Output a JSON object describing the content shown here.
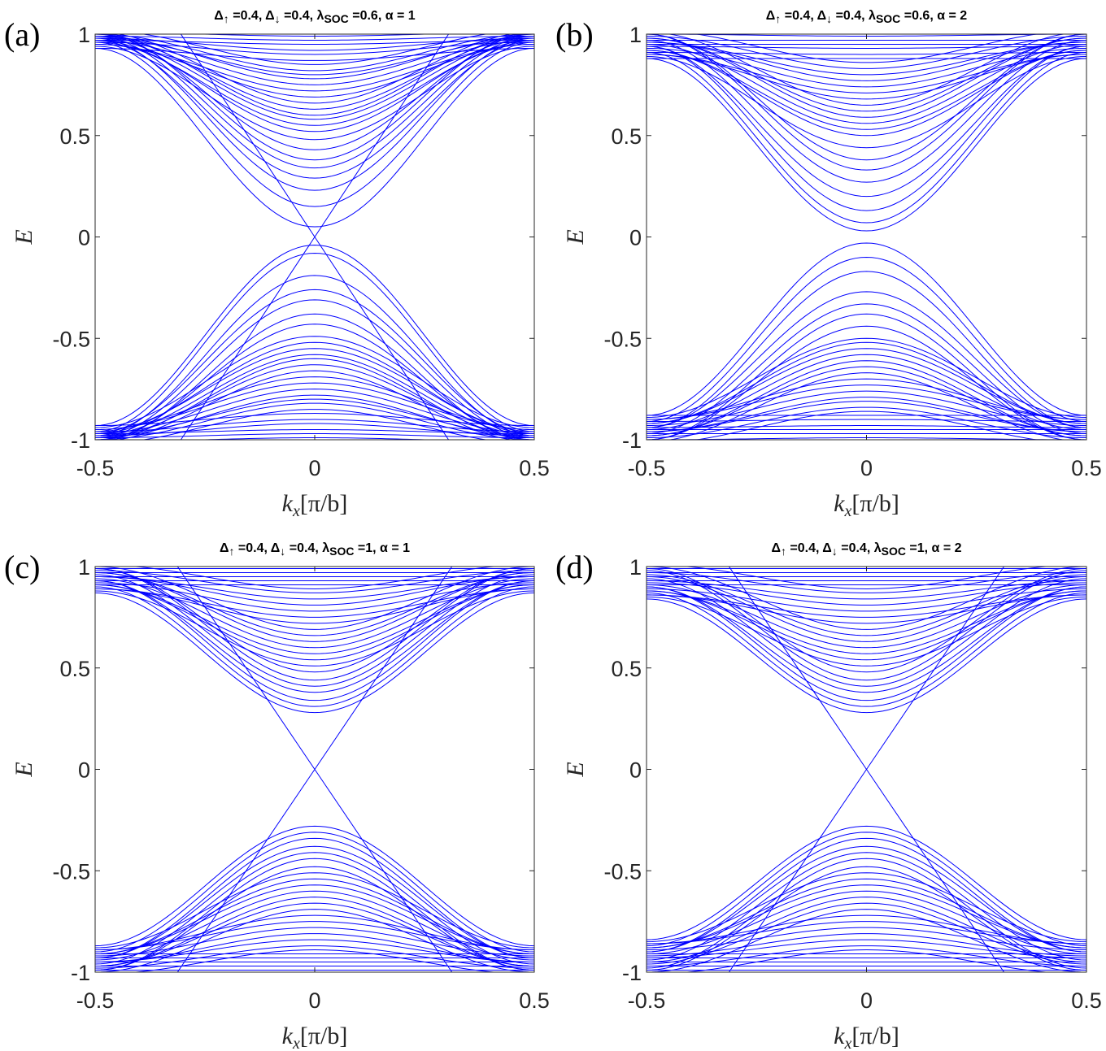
{
  "figure": {
    "band_color": "#0000ff",
    "axis_color": "#262626"
  },
  "chart_data": [
    {
      "type": "line",
      "panel_label": "(a)",
      "title": "Δ↑ =0.4,  Δ↓ =0.4, λSOC =0.6,  α = 1",
      "title_parts": [
        "Δ",
        "↑",
        " =0.4,  Δ",
        "↓",
        " =0.4, λ",
        "SOC",
        " =0.6,  α = 1"
      ],
      "xlabel": "kx[π/b]",
      "xlabel_parts": [
        "k",
        "x",
        "[π/b]"
      ],
      "ylabel": "E",
      "xlim": [
        -0.5,
        0.5
      ],
      "ylim": [
        -1,
        1
      ],
      "xticks": [
        -0.5,
        0,
        0.5
      ],
      "xtick_labels": [
        "-0.5",
        "0",
        "0.5"
      ],
      "yticks": [
        -1,
        -0.5,
        0,
        0.5,
        1
      ],
      "ytick_labels": [
        "-1",
        "-0.5",
        "0",
        "0.5",
        "1"
      ],
      "edge_slope": 3.3,
      "edge_gap_min": 0.0,
      "bulk_bands_upper": [
        0.05,
        0.15,
        0.23,
        0.29,
        0.34,
        0.38,
        0.43,
        0.48,
        0.52,
        0.55,
        0.58,
        0.6,
        0.63,
        0.66,
        0.69,
        0.72,
        0.75,
        0.78,
        0.8,
        0.82,
        0.85,
        0.87,
        0.9,
        0.92,
        0.95,
        0.97,
        0.99
      ],
      "bulk_bands_lower": [
        -0.04,
        -0.08,
        -0.19,
        -0.26,
        -0.31,
        -0.38,
        -0.43,
        -0.49,
        -0.52,
        -0.55,
        -0.58,
        -0.6,
        -0.63,
        -0.66,
        -0.69,
        -0.72,
        -0.75,
        -0.78,
        -0.8,
        -0.82,
        -0.85,
        -0.87,
        -0.9,
        -0.92,
        -0.95,
        -0.97,
        -0.99
      ],
      "bulk_edge_values": [
        0.93,
        0.95,
        0.96,
        0.97,
        0.98,
        0.99,
        1.0
      ]
    },
    {
      "type": "line",
      "panel_label": "(b)",
      "title": "Δ↑ =0.4, Δ↓ =0.4, λSOC =0.6,  α = 2",
      "title_parts": [
        "Δ",
        "↑",
        " =0.4, Δ",
        "↓",
        " =0.4, λ",
        "SOC",
        " =0.6,  α = 2"
      ],
      "xlabel": "kx[π/b]",
      "xlabel_parts": [
        "k",
        "x",
        "[π/b]"
      ],
      "ylabel": "E",
      "xlim": [
        -0.5,
        0.5
      ],
      "ylim": [
        -1,
        1
      ],
      "xticks": [
        -0.5,
        0,
        0.5
      ],
      "xtick_labels": [
        "-0.5",
        "0",
        "0.5"
      ],
      "yticks": [
        -1,
        -0.5,
        0,
        0.5,
        1
      ],
      "ytick_labels": [
        "-1",
        "-0.5",
        "0",
        "0.5",
        "1"
      ],
      "edge_slope": 0,
      "edge_gap_min": 0.03,
      "bulk_bands_upper": [
        0.03,
        0.07,
        0.13,
        0.2,
        0.27,
        0.33,
        0.38,
        0.44,
        0.5,
        0.53,
        0.56,
        0.59,
        0.62,
        0.65,
        0.68,
        0.71,
        0.74,
        0.77,
        0.8,
        0.83,
        0.86,
        0.88,
        0.9,
        0.93,
        0.95,
        0.97,
        0.99
      ],
      "bulk_bands_lower": [
        -0.03,
        -0.1,
        -0.17,
        -0.27,
        -0.33,
        -0.38,
        -0.44,
        -0.5,
        -0.52,
        -0.55,
        -0.58,
        -0.61,
        -0.64,
        -0.67,
        -0.7,
        -0.73,
        -0.76,
        -0.79,
        -0.81,
        -0.84,
        -0.86,
        -0.88,
        -0.9,
        -0.93,
        -0.95,
        -0.97,
        -0.99
      ],
      "bulk_edge_values": [
        0.88,
        0.9,
        0.92,
        0.94,
        0.96,
        0.98,
        1.0
      ]
    },
    {
      "type": "line",
      "panel_label": "(c)",
      "title": "Δ↑ =0.4, Δ↓ =0.4, λSOC =1, α = 1",
      "title_parts": [
        "Δ",
        "↑",
        " =0.4, Δ",
        "↓",
        " =0.4, λ",
        "SOC",
        " =1, α = 1"
      ],
      "xlabel": "kx[π/b]",
      "xlabel_parts": [
        "k",
        "x",
        "[π/b]"
      ],
      "ylabel": "E",
      "xlim": [
        -0.5,
        0.5
      ],
      "ylim": [
        -1,
        1
      ],
      "xticks": [
        -0.5,
        0,
        0.5
      ],
      "xtick_labels": [
        "-0.5",
        "0",
        "0.5"
      ],
      "yticks": [
        -1,
        -0.5,
        0,
        0.5,
        1
      ],
      "ytick_labels": [
        "-1",
        "-0.5",
        "0",
        "0.5",
        "1"
      ],
      "edge_slope": 3.2,
      "edge_gap_min": 0.0,
      "bulk_bands_upper": [
        0.28,
        0.31,
        0.34,
        0.38,
        0.41,
        0.44,
        0.48,
        0.51,
        0.54,
        0.57,
        0.6,
        0.63,
        0.66,
        0.69,
        0.72,
        0.75,
        0.78,
        0.81,
        0.84,
        0.87,
        0.89,
        0.91,
        0.93,
        0.95,
        0.97,
        0.99
      ],
      "bulk_bands_lower": [
        -0.28,
        -0.31,
        -0.34,
        -0.38,
        -0.41,
        -0.44,
        -0.48,
        -0.51,
        -0.54,
        -0.57,
        -0.6,
        -0.63,
        -0.66,
        -0.69,
        -0.72,
        -0.75,
        -0.78,
        -0.81,
        -0.84,
        -0.87,
        -0.89,
        -0.91,
        -0.93,
        -0.95,
        -0.97,
        -0.99
      ],
      "bulk_edge_values": [
        0.87,
        0.89,
        0.91,
        0.93,
        0.95,
        0.97,
        0.99
      ]
    },
    {
      "type": "line",
      "panel_label": "(d)",
      "title": "Δ↑ =0.4, Δ↓ =0.4, λSOC =1, α = 2",
      "title_parts": [
        "Δ",
        "↑",
        " =0.4, Δ",
        "↓",
        " =0.4, λ",
        "SOC",
        " =1, α = 2"
      ],
      "xlabel": "kx[π/b]",
      "xlabel_parts": [
        "k",
        "x",
        "[π/b]"
      ],
      "ylabel": "E",
      "xlim": [
        -0.5,
        0.5
      ],
      "ylim": [
        -1,
        1
      ],
      "xticks": [
        -0.5,
        0,
        0.5
      ],
      "xtick_labels": [
        "-0.5",
        "0",
        "0.5"
      ],
      "yticks": [
        -1,
        -0.5,
        0,
        0.5,
        1
      ],
      "ytick_labels": [
        "-1",
        "-0.5",
        "0",
        "0.5",
        "1"
      ],
      "edge_slope": 3.2,
      "edge_gap_min": 0.0,
      "bulk_bands_upper": [
        0.28,
        0.31,
        0.34,
        0.38,
        0.41,
        0.44,
        0.48,
        0.51,
        0.54,
        0.57,
        0.6,
        0.63,
        0.66,
        0.69,
        0.72,
        0.75,
        0.78,
        0.81,
        0.84,
        0.87,
        0.89,
        0.91,
        0.93,
        0.95,
        0.97,
        0.99
      ],
      "bulk_bands_lower": [
        -0.28,
        -0.31,
        -0.34,
        -0.38,
        -0.41,
        -0.44,
        -0.48,
        -0.51,
        -0.54,
        -0.57,
        -0.6,
        -0.63,
        -0.66,
        -0.69,
        -0.72,
        -0.75,
        -0.78,
        -0.81,
        -0.84,
        -0.87,
        -0.89,
        -0.91,
        -0.93,
        -0.95,
        -0.97,
        -0.99
      ],
      "bulk_edge_values": [
        0.84,
        0.86,
        0.88,
        0.9,
        0.93,
        0.96,
        0.99
      ]
    }
  ]
}
